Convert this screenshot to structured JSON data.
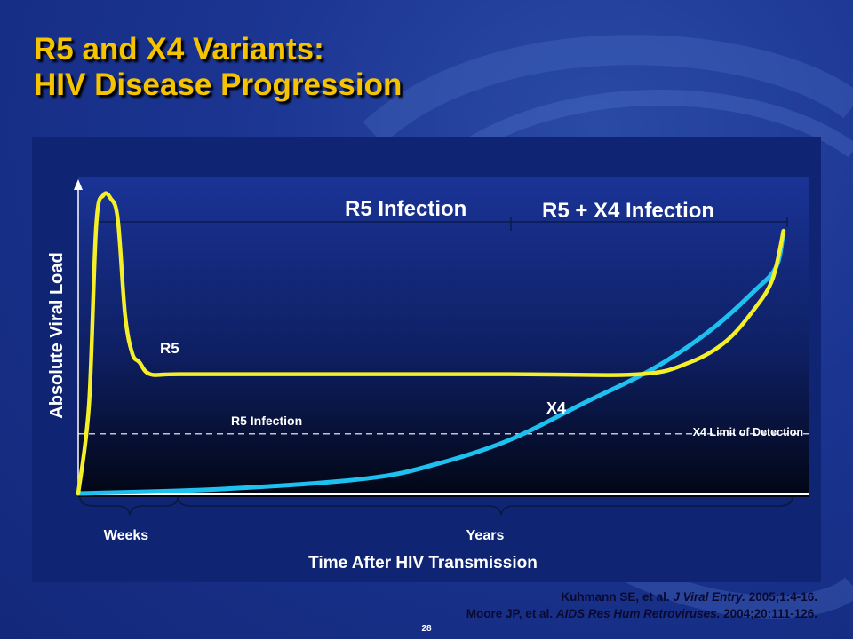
{
  "slide": {
    "title_line1": "R5 and X4 Variants:",
    "title_line2": "HIV Disease Progression",
    "page_number": "28"
  },
  "citations": [
    {
      "authors": "Kuhmann SE, et al. ",
      "journal": "J Viral Entry.",
      "details": " 2005;1:4-16."
    },
    {
      "authors": "Moore JP, et al. ",
      "journal": "AIDS Res Hum Retroviruses.",
      "details": " 2004;20:111-126."
    }
  ],
  "colors": {
    "title": "#f5c300",
    "r5_curve": "#f5ef2a",
    "x4_curve": "#1ec0f0",
    "axis": "#ffffff",
    "panel": "#0f2472"
  },
  "chart_data": {
    "type": "line",
    "title": "",
    "xlabel": "Time After HIV Transmission",
    "ylabel": "Absolute Viral Load",
    "x_units": "schematic time (not to scale)",
    "y_units": "relative viral load (schematic)",
    "xlim": [
      0,
      100
    ],
    "ylim": [
      0,
      100
    ],
    "grid": false,
    "legend": "none",
    "x_segments": [
      {
        "label": "Weeks",
        "range": [
          0,
          14
        ]
      },
      {
        "label": "Years",
        "range": [
          14,
          100
        ]
      }
    ],
    "phases": [
      {
        "label": "R5 Infection",
        "range": [
          0,
          59
        ]
      },
      {
        "label": "R5 + X4 Infection",
        "range": [
          59,
          100
        ]
      }
    ],
    "threshold": {
      "label": "X4 Limit of Detection",
      "y": 20
    },
    "annotations": [
      {
        "text": "R5 Infection",
        "x": 28,
        "y": 26
      }
    ],
    "series": [
      {
        "name": "R5",
        "x": [
          0,
          1.5,
          2.5,
          3.5,
          4.5,
          5.5,
          6.5,
          7.5,
          8.5,
          10,
          14,
          30,
          60,
          78,
          85,
          90,
          94,
          96.5,
          98
        ],
        "y": [
          0,
          30,
          90,
          100,
          99,
          92,
          60,
          47,
          44,
          40,
          40,
          40,
          40,
          40,
          44,
          51,
          62,
          72,
          88
        ]
      },
      {
        "name": "X4",
        "x": [
          0,
          20,
          40,
          50,
          60,
          70,
          80,
          88,
          94,
          97,
          98
        ],
        "y": [
          0,
          1.5,
          5,
          10,
          18,
          30,
          42,
          55,
          68,
          76,
          88
        ]
      }
    ]
  }
}
